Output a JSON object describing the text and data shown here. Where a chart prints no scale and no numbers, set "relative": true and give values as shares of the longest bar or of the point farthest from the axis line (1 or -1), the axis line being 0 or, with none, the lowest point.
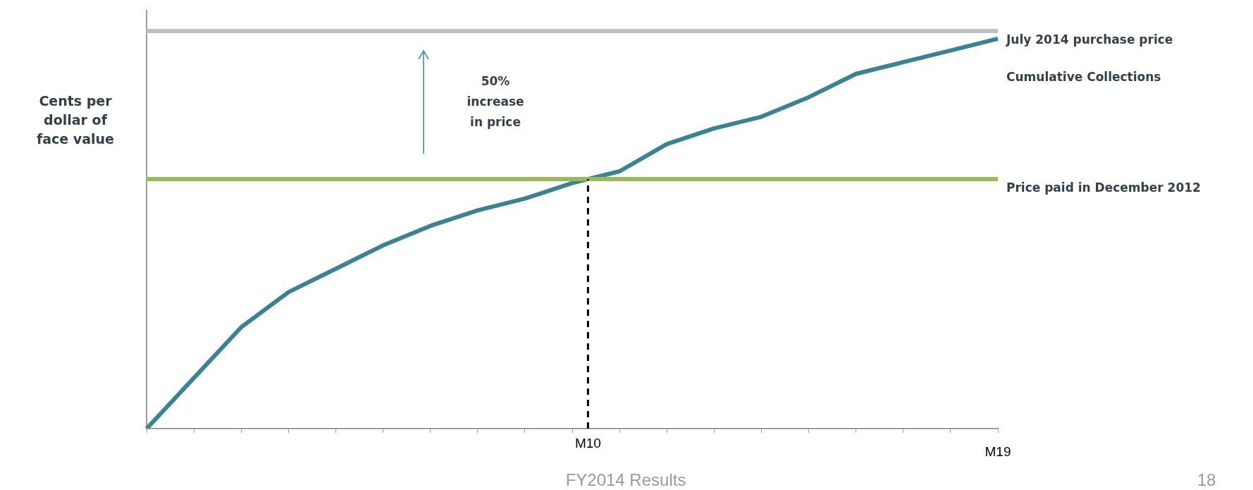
{
  "chart_data": {
    "type": "line",
    "relative": true,
    "ylabel": "Cents per dollar of face value",
    "categories": [
      null,
      null,
      null,
      null,
      null,
      null,
      null,
      null,
      null,
      null,
      null,
      null,
      null,
      null,
      null,
      null,
      null,
      null,
      null
    ],
    "series": [
      {
        "name": "Cumulative Collections",
        "color": "#3a8394",
        "values": [
          0,
          0.13,
          0.26,
          0.35,
          0.41,
          0.47,
          0.52,
          0.56,
          0.59,
          0.63,
          0.66,
          0.73,
          0.77,
          0.8,
          0.85,
          0.91,
          0.94,
          0.97,
          1
        ]
      }
    ],
    "ref_lines": [
      {
        "axis": "y",
        "value": 1.02,
        "label": "July 2014 purchase price",
        "color": "#bfbfbf"
      },
      {
        "axis": "y",
        "value": 0.64,
        "label": "Price paid in December 2012",
        "color": "#9bbb59"
      }
    ],
    "annotations": [
      "50% increase in price",
      "M10",
      "M19",
      "FY2014 Results",
      "18"
    ],
    "grid": false,
    "legend": false,
    "marker": "none",
    "line_style": "solid"
  }
}
